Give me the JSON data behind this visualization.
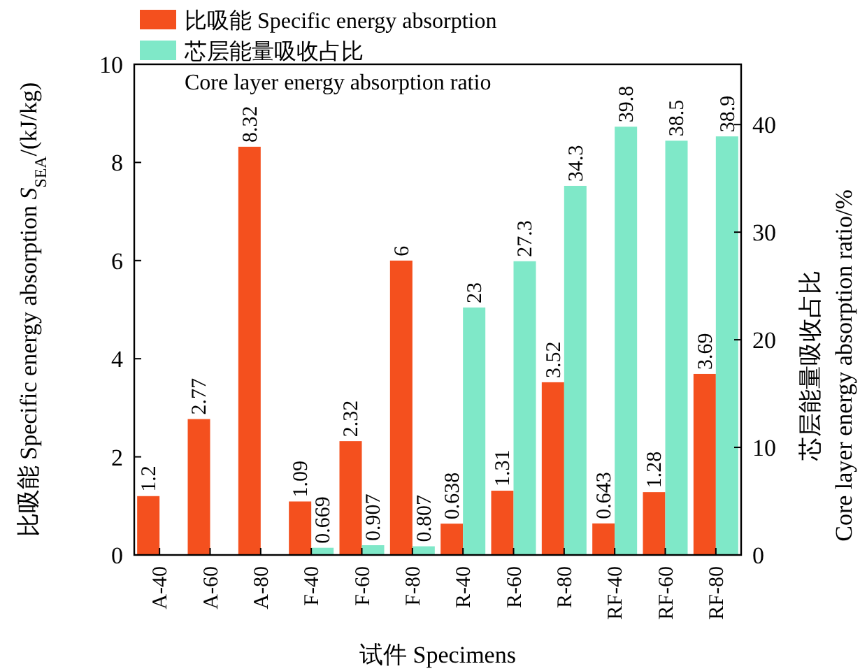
{
  "chart_data": {
    "type": "bar",
    "xlabel": "试件 Specimens",
    "ylabel": "比吸能 Specific energy absorption *S*$_{SEA}$/(kJ/kg)",
    "y2label": "芯层能量吸收占比\nCore layer energy absorption ratio/%",
    "categories": [
      "A-40",
      "A-60",
      "A-80",
      "F-40",
      "F-60",
      "F-80",
      "R-40",
      "R-60",
      "R-80",
      "RF-40",
      "RF-60",
      "RF-80"
    ],
    "series": [
      {
        "name": "比吸能 Specific energy absorption",
        "color": "#f4501e",
        "values": [
          1.2,
          2.77,
          8.32,
          1.09,
          2.32,
          6,
          0.638,
          1.31,
          3.52,
          0.643,
          1.28,
          3.69
        ]
      },
      {
        "name": "芯层能量吸收占比\nCore layer energy absorption ratio",
        "color": "#7fe8c8",
        "axis": "y2",
        "values": [
          null,
          null,
          null,
          0.669,
          0.907,
          0.807,
          23,
          27.3,
          34.3,
          39.8,
          38.5,
          38.9
        ]
      }
    ],
    "ylim": [
      0,
      10
    ],
    "yticks": [
      0,
      2,
      4,
      6,
      8,
      10
    ],
    "y2lim": [
      0,
      45.6
    ],
    "y2ticks": [
      0,
      10,
      20,
      30,
      40
    ],
    "data_labels": true,
    "legend": "top left"
  }
}
